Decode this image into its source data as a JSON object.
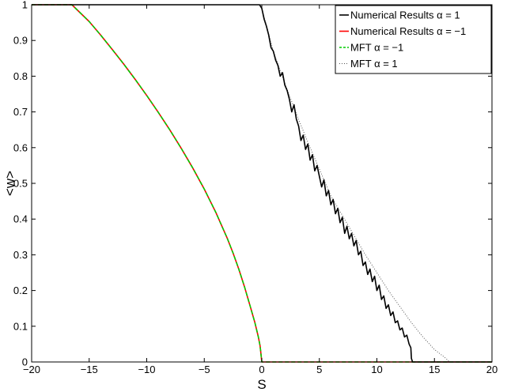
{
  "chart_data": {
    "type": "line",
    "xlabel": "S",
    "ylabel": "<w>",
    "xlim": [
      -20,
      20
    ],
    "ylim": [
      0,
      1
    ],
    "xticks": [
      -20,
      -15,
      -10,
      -5,
      0,
      5,
      10,
      15,
      20
    ],
    "yticks": [
      0,
      0.1,
      0.2,
      0.3,
      0.4,
      0.5,
      0.6,
      0.7,
      0.8,
      0.9,
      1
    ],
    "xtick_labels": [
      "−20",
      "−15",
      "−10",
      "−5",
      "0",
      "5",
      "10",
      "15",
      "20"
    ],
    "ytick_labels": [
      "0",
      "0.1",
      "0.2",
      "0.3",
      "0.4",
      "0.5",
      "0.6",
      "0.7",
      "0.8",
      "0.9",
      "1"
    ],
    "grid": false,
    "legend_position": "top-right",
    "series": [
      {
        "name": "Numerical Results α = 1",
        "color": "#000000",
        "style": "solid",
        "x": [
          -20,
          -0.2,
          0.0,
          0.2,
          0.4,
          0.6,
          0.8,
          1.0,
          1.2,
          1.4,
          1.6,
          1.8,
          2.0,
          2.2,
          2.4,
          2.6,
          2.8,
          3.0,
          3.2,
          3.4,
          3.6,
          3.8,
          4.0,
          4.2,
          4.4,
          4.6,
          4.8,
          5.0,
          5.2,
          5.4,
          5.6,
          5.8,
          6.0,
          6.2,
          6.4,
          6.6,
          6.8,
          7.0,
          7.2,
          7.4,
          7.6,
          7.8,
          8.0,
          8.2,
          8.4,
          8.6,
          8.8,
          9.0,
          9.2,
          9.4,
          9.6,
          9.8,
          10.0,
          10.2,
          10.4,
          10.6,
          10.8,
          11.0,
          11.2,
          11.4,
          11.6,
          11.8,
          12.0,
          12.2,
          12.4,
          12.6,
          12.8,
          12.95,
          13.0,
          13.1,
          20
        ],
        "y": [
          1,
          1,
          0.99,
          0.96,
          0.94,
          0.915,
          0.88,
          0.87,
          0.845,
          0.83,
          0.8,
          0.81,
          0.775,
          0.76,
          0.735,
          0.7,
          0.72,
          0.68,
          0.66,
          0.62,
          0.635,
          0.595,
          0.61,
          0.565,
          0.58,
          0.535,
          0.55,
          0.52,
          0.49,
          0.51,
          0.465,
          0.48,
          0.44,
          0.455,
          0.415,
          0.43,
          0.39,
          0.405,
          0.36,
          0.38,
          0.345,
          0.36,
          0.325,
          0.34,
          0.3,
          0.31,
          0.27,
          0.28,
          0.245,
          0.26,
          0.225,
          0.24,
          0.2,
          0.215,
          0.175,
          0.185,
          0.15,
          0.16,
          0.13,
          0.14,
          0.11,
          0.115,
          0.09,
          0.095,
          0.07,
          0.075,
          0.05,
          0.04,
          0.01,
          0,
          0
        ]
      },
      {
        "name": "Numerical Results α = −1",
        "color": "#ff0000",
        "style": "solid",
        "x": [
          -20,
          -16.5,
          -15,
          -14,
          -13,
          -12,
          -11,
          -10,
          -9,
          -8,
          -7,
          -6,
          -5,
          -4,
          -3,
          -2.5,
          -2,
          -1.5,
          -1,
          -0.6,
          -0.3,
          -0.15,
          0,
          20
        ],
        "y": [
          1,
          1,
          0.953,
          0.915,
          0.875,
          0.834,
          0.791,
          0.746,
          0.699,
          0.65,
          0.598,
          0.543,
          0.484,
          0.419,
          0.346,
          0.305,
          0.26,
          0.21,
          0.155,
          0.11,
          0.07,
          0.045,
          0,
          0
        ]
      },
      {
        "name": "MFT α = −1",
        "color": "#00cc00",
        "style": "dashed",
        "x": [
          -20,
          -16.5,
          -15,
          -14,
          -13,
          -12,
          -11,
          -10,
          -9,
          -8,
          -7,
          -6,
          -5,
          -4,
          -3,
          -2.5,
          -2,
          -1.5,
          -1,
          -0.6,
          -0.3,
          -0.15,
          0,
          20
        ],
        "y": [
          1,
          1,
          0.953,
          0.915,
          0.875,
          0.834,
          0.791,
          0.746,
          0.699,
          0.65,
          0.598,
          0.543,
          0.484,
          0.419,
          0.346,
          0.305,
          0.26,
          0.21,
          0.155,
          0.11,
          0.07,
          0.045,
          0,
          0
        ]
      },
      {
        "name": "MFT α = 1",
        "color": "#555555",
        "style": "dotted",
        "x": [
          -20,
          -0.2,
          0.0,
          1.0,
          2.0,
          3.0,
          4.0,
          5.0,
          6.0,
          7.0,
          8.0,
          9.0,
          10.0,
          11.0,
          12.0,
          13.0,
          14.0,
          15.0,
          16.0,
          16.3,
          20
        ],
        "y": [
          1,
          1,
          0.99,
          0.87,
          0.78,
          0.695,
          0.615,
          0.54,
          0.465,
          0.41,
          0.355,
          0.3,
          0.25,
          0.2,
          0.155,
          0.11,
          0.07,
          0.035,
          0.01,
          0,
          0
        ]
      }
    ]
  }
}
